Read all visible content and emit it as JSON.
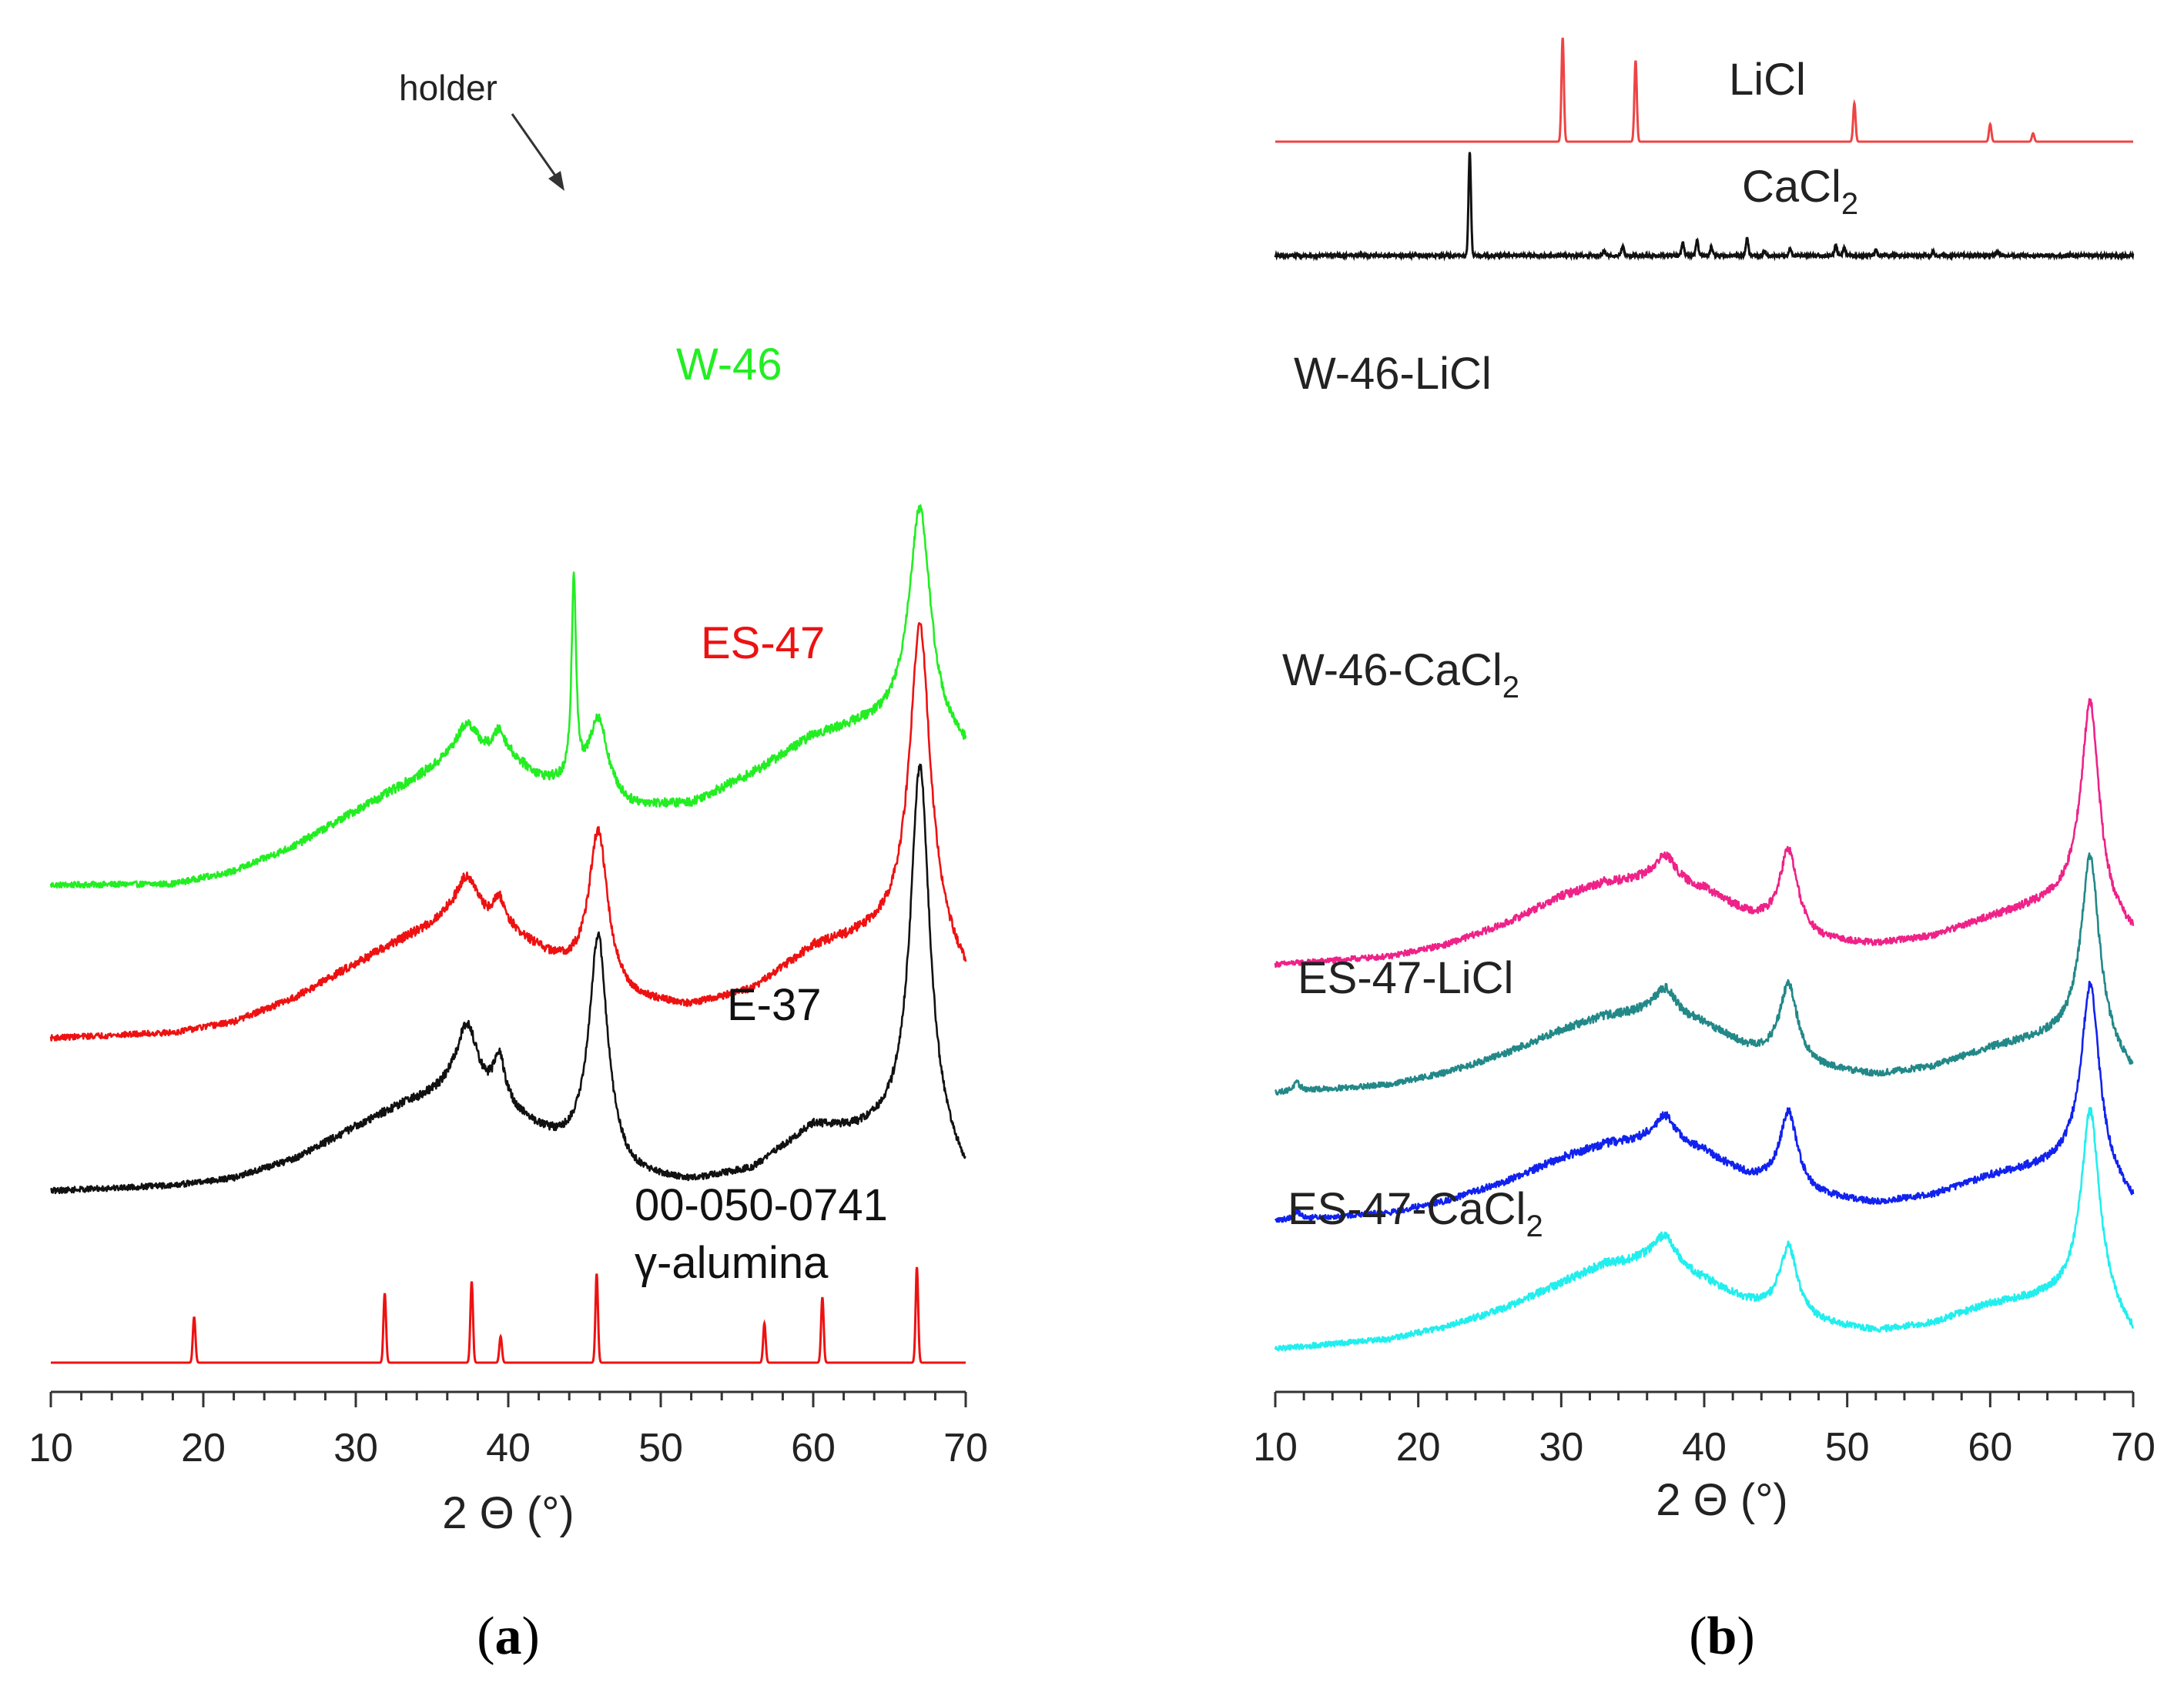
{
  "chart_data": [
    {
      "panel": "(a)",
      "panel_letter": "a",
      "type": "line",
      "chart_style": "stacked XRD patterns (arbitrary intensity units, vertically offset)",
      "xlabel": "2 Θ (°)",
      "xlim": [
        10,
        70
      ],
      "xticks": [
        "10",
        "20",
        "30",
        "40",
        "50",
        "60",
        "70"
      ],
      "annotations": [
        {
          "text": "holder",
          "x": 44.2
        }
      ],
      "series": [
        {
          "name": "W-46",
          "color": "#22ee22",
          "offset": 2.85,
          "baseline": [
            [
              10,
              0.05
            ],
            [
              18,
              0.06
            ],
            [
              22,
              0.18
            ],
            [
              26,
              0.42
            ],
            [
              30,
              0.75
            ],
            [
              33,
              0.98
            ],
            [
              36,
              1.2
            ],
            [
              40,
              1.25
            ],
            [
              42,
              1.05
            ],
            [
              44,
              0.95
            ],
            [
              48,
              0.78
            ],
            [
              52,
              0.82
            ],
            [
              56,
              1.1
            ],
            [
              60,
              1.45
            ],
            [
              63,
              1.55
            ],
            [
              66,
              1.6
            ],
            [
              68,
              1.45
            ],
            [
              70,
              1.3
            ]
          ],
          "peaks": [
            [
              44.3,
              1.95,
              0.18
            ],
            [
              37.3,
              0.35,
              0.9
            ],
            [
              39.4,
              0.22,
              0.45
            ],
            [
              45.9,
              0.75,
              0.75
            ],
            [
              67.0,
              2.1,
              0.85
            ]
          ]
        },
        {
          "name": "ES-47",
          "color": "#ee1111",
          "offset": 1.45,
          "baseline": [
            [
              10,
              0.0
            ],
            [
              18,
              0.05
            ],
            [
              22,
              0.15
            ],
            [
              26,
              0.38
            ],
            [
              30,
              0.7
            ],
            [
              33,
              0.92
            ],
            [
              36,
              1.1
            ],
            [
              40,
              1.0
            ],
            [
              43,
              0.72
            ],
            [
              48,
              0.35
            ],
            [
              52,
              0.3
            ],
            [
              56,
              0.45
            ],
            [
              60,
              0.85
            ],
            [
              63,
              0.95
            ],
            [
              66,
              1.05
            ],
            [
              68,
              0.9
            ],
            [
              70,
              0.55
            ]
          ],
          "peaks": [
            [
              37.3,
              0.45,
              0.9
            ],
            [
              39.4,
              0.25,
              0.45
            ],
            [
              45.9,
              1.45,
              0.75
            ],
            [
              67.0,
              2.95,
              0.8
            ]
          ]
        },
        {
          "name": "E-37",
          "color": "#111111",
          "offset": 0.0,
          "baseline": [
            [
              10,
              0.0
            ],
            [
              18,
              0.05
            ],
            [
              22,
              0.12
            ],
            [
              26,
              0.3
            ],
            [
              30,
              0.6
            ],
            [
              33,
              0.8
            ],
            [
              36,
              0.9
            ],
            [
              40,
              0.72
            ],
            [
              43,
              0.45
            ],
            [
              48,
              0.12
            ],
            [
              52,
              0.08
            ],
            [
              56,
              0.2
            ],
            [
              60,
              0.6
            ],
            [
              63,
              0.55
            ],
            [
              66,
              0.6
            ],
            [
              68,
              0.45
            ],
            [
              70,
              0.1
            ]
          ],
          "peaks": [
            [
              37.3,
              0.7,
              0.9
            ],
            [
              39.4,
              0.45,
              0.45
            ],
            [
              45.9,
              2.15,
              0.75
            ],
            [
              67.0,
              3.5,
              0.75
            ]
          ]
        }
      ],
      "reference": {
        "name": "γ-alumina",
        "card": "00-050-0741",
        "color": "#ee1111",
        "peaks": [
          [
            19.4,
            0.35
          ],
          [
            31.9,
            0.53
          ],
          [
            37.6,
            0.62
          ],
          [
            39.5,
            0.2
          ],
          [
            45.8,
            0.68
          ],
          [
            56.8,
            0.3
          ],
          [
            60.6,
            0.5
          ],
          [
            66.8,
            0.73
          ]
        ]
      }
    },
    {
      "panel": "(b)",
      "panel_letter": "b",
      "type": "line",
      "chart_style": "stacked XRD patterns (arbitrary intensity units, vertically offset)",
      "xlabel": "2 Θ (°)",
      "xlim": [
        10,
        70
      ],
      "xticks": [
        "10",
        "20",
        "30",
        "40",
        "50",
        "60",
        "70"
      ],
      "references": [
        {
          "name": "LiCl",
          "color": "#ee4444",
          "peaks": [
            [
              30.1,
              1.0
            ],
            [
              35.2,
              0.78
            ],
            [
              50.5,
              0.37
            ],
            [
              60.0,
              0.17
            ],
            [
              63.0,
              0.08
            ]
          ]
        },
        {
          "name": "CaCl",
          "subscript": "2",
          "color": "#111111",
          "peaks": [
            [
              23.6,
              1.0
            ],
            [
              33.0,
              0.05
            ],
            [
              34.3,
              0.09
            ],
            [
              38.5,
              0.13
            ],
            [
              39.5,
              0.15
            ],
            [
              40.5,
              0.08
            ],
            [
              43.0,
              0.17
            ],
            [
              44.2,
              0.05
            ],
            [
              46.0,
              0.07
            ],
            [
              49.2,
              0.1
            ],
            [
              49.8,
              0.07
            ],
            [
              52.0,
              0.05
            ],
            [
              56.0,
              0.04
            ],
            [
              60.5,
              0.04
            ]
          ]
        }
      ],
      "series": [
        {
          "name": "W-46-LiCl",
          "subscript": "",
          "color": "#ee2288",
          "offset": 4.8,
          "baseline": [
            [
              10,
              0.0
            ],
            [
              18,
              0.1
            ],
            [
              22,
              0.25
            ],
            [
              26,
              0.5
            ],
            [
              30,
              0.85
            ],
            [
              33,
              1.02
            ],
            [
              36,
              1.05
            ],
            [
              40,
              0.92
            ],
            [
              43,
              0.62
            ],
            [
              48,
              0.3
            ],
            [
              52,
              0.25
            ],
            [
              56,
              0.35
            ],
            [
              60,
              0.58
            ],
            [
              63,
              0.72
            ],
            [
              66,
              0.85
            ],
            [
              68,
              0.6
            ],
            [
              70,
              0.35
            ]
          ],
          "peaks": [
            [
              37.3,
              0.35,
              0.9
            ],
            [
              45.9,
              1.0,
              0.75
            ],
            [
              67.0,
              2.55,
              0.75
            ]
          ]
        },
        {
          "name": "W-46-CaCl",
          "subscript": "2",
          "color": "#228888",
          "offset": 3.2,
          "baseline": [
            [
              10,
              0.0
            ],
            [
              18,
              0.1
            ],
            [
              22,
              0.25
            ],
            [
              26,
              0.48
            ],
            [
              30,
              0.78
            ],
            [
              33,
              0.95
            ],
            [
              36,
              1.0
            ],
            [
              40,
              0.85
            ],
            [
              43,
              0.55
            ],
            [
              48,
              0.3
            ],
            [
              52,
              0.22
            ],
            [
              56,
              0.32
            ],
            [
              60,
              0.55
            ],
            [
              63,
              0.65
            ],
            [
              66,
              0.75
            ],
            [
              68,
              0.55
            ],
            [
              70,
              0.2
            ]
          ],
          "peaks": [
            [
              11.5,
              0.1,
              0.3
            ],
            [
              37.3,
              0.35,
              0.9
            ],
            [
              45.9,
              0.95,
              0.75
            ],
            [
              67.0,
              2.3,
              0.75
            ]
          ]
        },
        {
          "name": "ES-47-LiCl",
          "subscript": "",
          "color": "#1122ee",
          "offset": 1.6,
          "baseline": [
            [
              10,
              0.0
            ],
            [
              18,
              0.1
            ],
            [
              22,
              0.25
            ],
            [
              26,
              0.48
            ],
            [
              30,
              0.78
            ],
            [
              33,
              0.95
            ],
            [
              36,
              1.0
            ],
            [
              40,
              0.85
            ],
            [
              43,
              0.55
            ],
            [
              48,
              0.3
            ],
            [
              52,
              0.22
            ],
            [
              56,
              0.32
            ],
            [
              60,
              0.55
            ],
            [
              63,
              0.65
            ],
            [
              66,
              0.75
            ],
            [
              68,
              0.55
            ],
            [
              70,
              0.2
            ]
          ],
          "peaks": [
            [
              11.5,
              0.1,
              0.3
            ],
            [
              37.3,
              0.35,
              0.9
            ],
            [
              45.9,
              0.95,
              0.75
            ],
            [
              67.0,
              2.3,
              0.75
            ]
          ]
        },
        {
          "name": "ES-47-CaCl",
          "subscript": "2",
          "color": "#22eeee",
          "offset": 0.0,
          "baseline": [
            [
              10,
              0.0
            ],
            [
              18,
              0.12
            ],
            [
              22,
              0.28
            ],
            [
              26,
              0.5
            ],
            [
              30,
              0.82
            ],
            [
              33,
              1.05
            ],
            [
              36,
              1.1
            ],
            [
              40,
              0.85
            ],
            [
              43,
              0.58
            ],
            [
              48,
              0.32
            ],
            [
              52,
              0.22
            ],
            [
              56,
              0.32
            ],
            [
              60,
              0.55
            ],
            [
              63,
              0.62
            ],
            [
              66,
              0.7
            ],
            [
              68,
              0.55
            ],
            [
              70,
              0.15
            ]
          ],
          "peaks": [
            [
              37.3,
              0.4,
              0.9
            ],
            [
              45.9,
              0.85,
              0.75
            ],
            [
              67.0,
              2.35,
              0.75
            ]
          ]
        }
      ]
    }
  ]
}
